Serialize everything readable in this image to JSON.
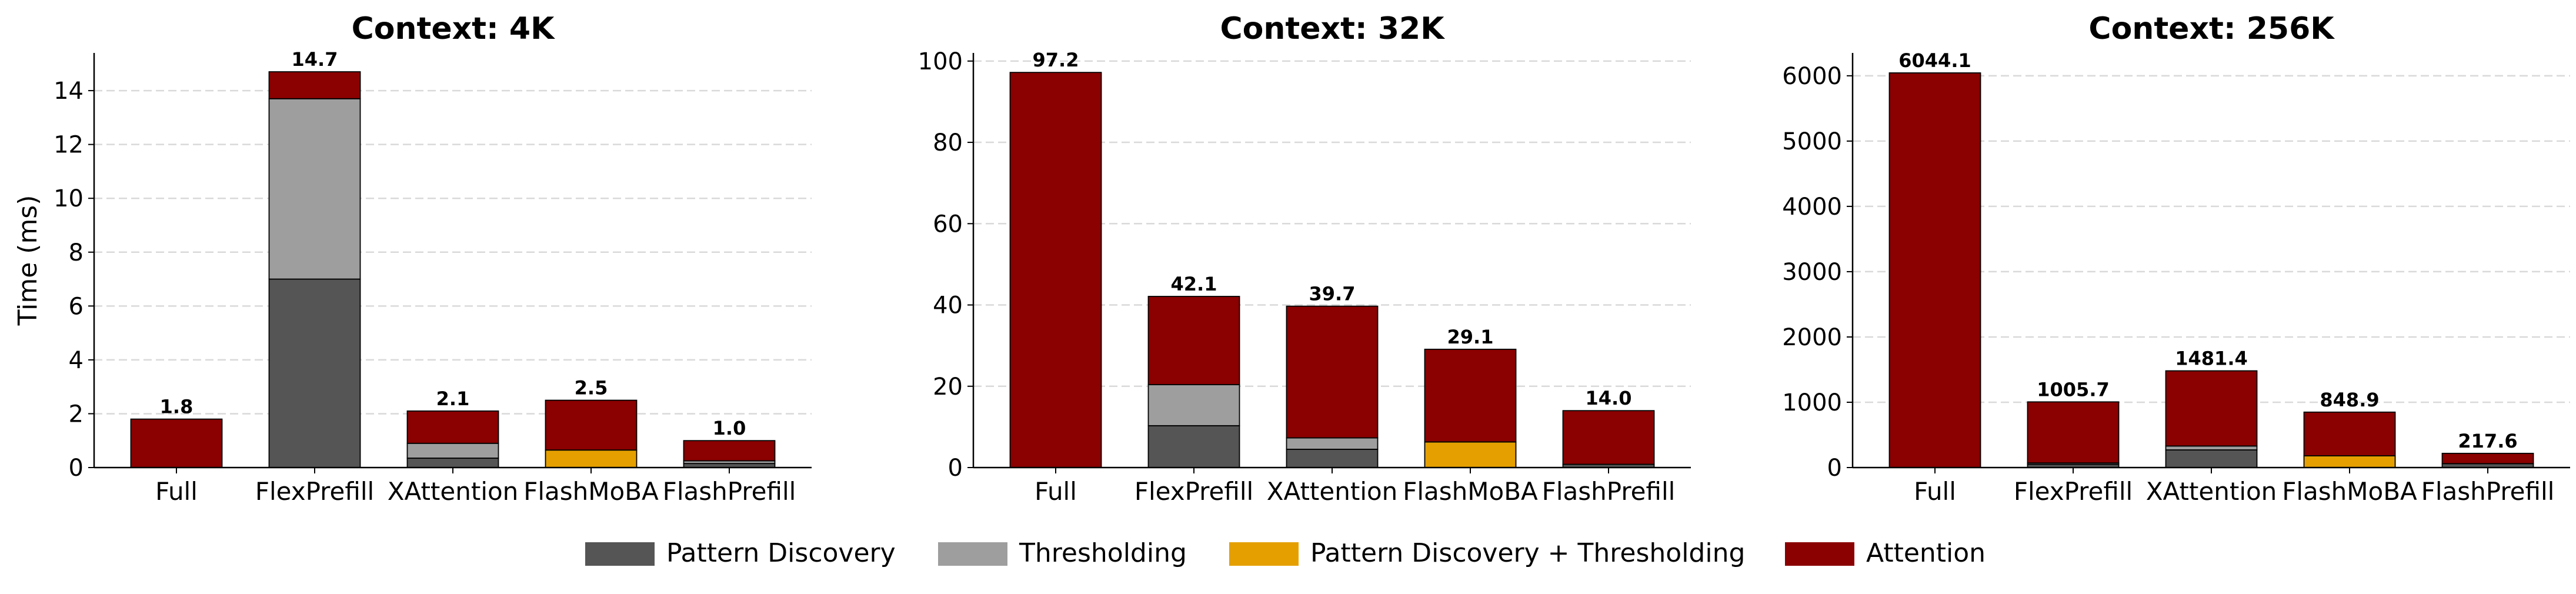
{
  "colors": {
    "pattern_discovery": "#555555",
    "thresholding": "#9e9e9e",
    "pattern_discovery_thresholding": "#e5a000",
    "attention": "#8b0000",
    "grid": "#d9d9d9",
    "axis": "#000000"
  },
  "legend": {
    "items": [
      {
        "label": "Pattern Discovery",
        "color_key": "pattern_discovery"
      },
      {
        "label": "Thresholding",
        "color_key": "thresholding"
      },
      {
        "label": "Pattern Discovery + Thresholding",
        "color_key": "pattern_discovery_thresholding"
      },
      {
        "label": "Attention",
        "color_key": "attention"
      }
    ],
    "placement": "bottom-center"
  },
  "chart_data": [
    {
      "type": "bar",
      "stacked": true,
      "title": "Context: 4K",
      "ylabel": "Time (ms)",
      "xlabel": "",
      "ylim": [
        0,
        15.4
      ],
      "yticks": [
        0,
        2,
        4,
        6,
        8,
        10,
        12,
        14
      ],
      "grid": true,
      "categories": [
        "Full",
        "FlexPrefill",
        "XAttention",
        "FlashMoBA",
        "FlashPrefill"
      ],
      "totals": [
        "1.8",
        "14.7",
        "2.1",
        "2.5",
        "1.0"
      ],
      "series": [
        {
          "name": "Pattern Discovery",
          "color_key": "pattern_discovery",
          "values": [
            0,
            7.0,
            0.35,
            0,
            0.15
          ]
        },
        {
          "name": "Thresholding",
          "color_key": "thresholding",
          "values": [
            0,
            6.7,
            0.55,
            0,
            0.1
          ]
        },
        {
          "name": "Pattern Discovery + Thresholding",
          "color_key": "pattern_discovery_thresholding",
          "values": [
            0,
            0,
            0,
            0.65,
            0
          ]
        },
        {
          "name": "Attention",
          "color_key": "attention",
          "values": [
            1.8,
            1.0,
            1.2,
            1.85,
            0.75
          ]
        }
      ]
    },
    {
      "type": "bar",
      "stacked": true,
      "title": "Context: 32K",
      "ylabel": "",
      "xlabel": "",
      "ylim": [
        0,
        102
      ],
      "yticks": [
        0,
        20,
        40,
        60,
        80,
        100
      ],
      "grid": true,
      "categories": [
        "Full",
        "FlexPrefill",
        "XAttention",
        "FlashMoBA",
        "FlashPrefill"
      ],
      "totals": [
        "97.2",
        "42.1",
        "39.7",
        "29.1",
        "14.0"
      ],
      "series": [
        {
          "name": "Pattern Discovery",
          "color_key": "pattern_discovery",
          "values": [
            0,
            10.3,
            4.5,
            0,
            0.8
          ]
        },
        {
          "name": "Thresholding",
          "color_key": "thresholding",
          "values": [
            0,
            10.1,
            2.8,
            0,
            0
          ]
        },
        {
          "name": "Pattern Discovery + Thresholding",
          "color_key": "pattern_discovery_thresholding",
          "values": [
            0,
            0,
            0,
            6.3,
            0
          ]
        },
        {
          "name": "Attention",
          "color_key": "attention",
          "values": [
            97.2,
            21.7,
            32.4,
            22.8,
            13.2
          ]
        }
      ]
    },
    {
      "type": "bar",
      "stacked": true,
      "title": "Context: 256K",
      "ylabel": "",
      "xlabel": "",
      "ylim": [
        0,
        6350
      ],
      "yticks": [
        0,
        1000,
        2000,
        3000,
        4000,
        5000,
        6000
      ],
      "grid": true,
      "categories": [
        "Full",
        "FlexPrefill",
        "XAttention",
        "FlashMoBA",
        "FlashPrefill"
      ],
      "totals": [
        "6044.1",
        "1005.7",
        "1481.4",
        "848.9",
        "217.6"
      ],
      "series": [
        {
          "name": "Pattern Discovery",
          "color_key": "pattern_discovery",
          "values": [
            0,
            50,
            270,
            0,
            60
          ]
        },
        {
          "name": "Thresholding",
          "color_key": "thresholding",
          "values": [
            0,
            20,
            60,
            0,
            0
          ]
        },
        {
          "name": "Pattern Discovery + Thresholding",
          "color_key": "pattern_discovery_thresholding",
          "values": [
            0,
            0,
            0,
            180,
            0
          ]
        },
        {
          "name": "Attention",
          "color_key": "attention",
          "values": [
            6044.1,
            935.7,
            1151.4,
            668.9,
            157.6
          ]
        }
      ]
    }
  ]
}
